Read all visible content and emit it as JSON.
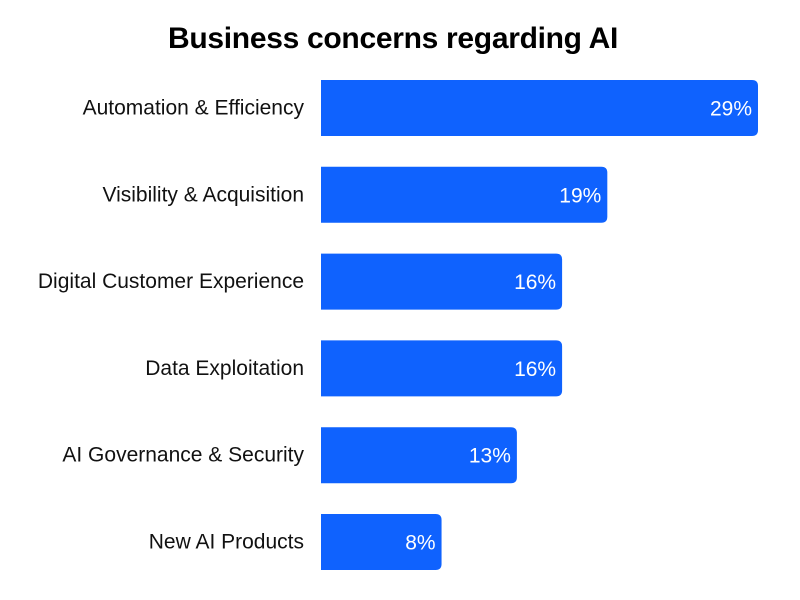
{
  "chart_data": {
    "type": "bar",
    "orientation": "horizontal",
    "title": "Business concerns regarding AI",
    "xlabel": "",
    "ylabel": "",
    "categories": [
      "Automation & Efficiency",
      "Visibility & Acquisition",
      "Digital Customer Experience",
      "Data Exploitation",
      "AI Governance & Security",
      "New AI Products"
    ],
    "values": [
      29,
      19,
      16,
      16,
      13,
      8
    ],
    "value_labels": [
      "29%",
      "19%",
      "16%",
      "16%",
      "13%",
      "8%"
    ],
    "unit": "%",
    "xlim": [
      0,
      29
    ],
    "grid": false,
    "legend": "none",
    "bar_color": "#0F62FE"
  }
}
